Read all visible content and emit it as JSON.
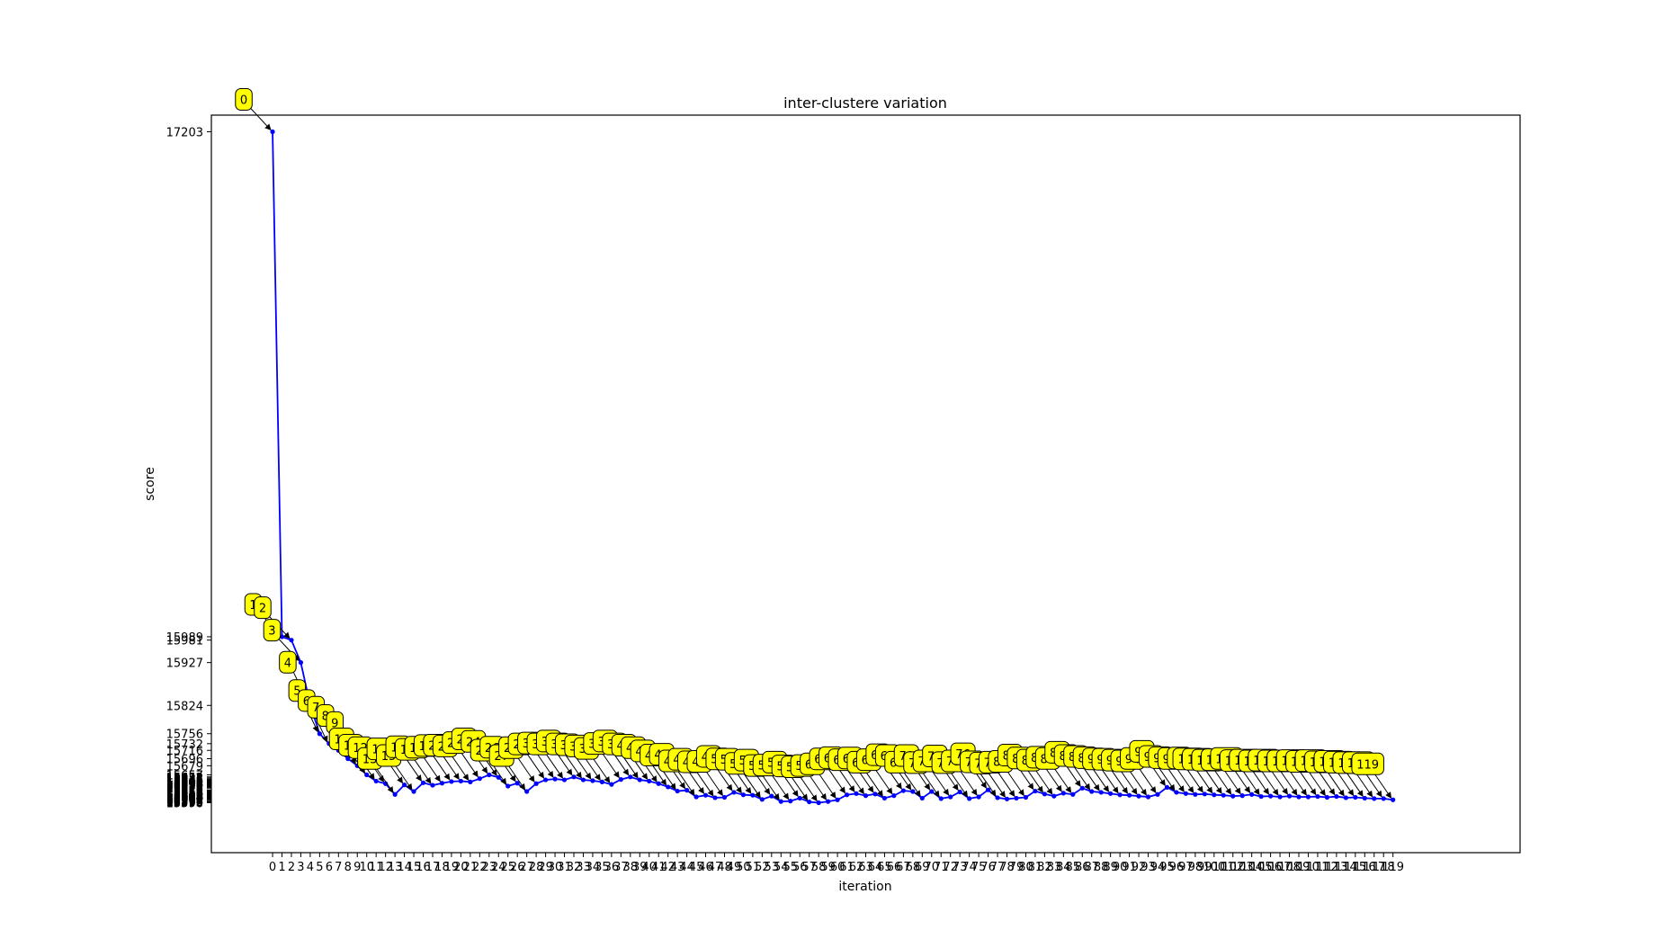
{
  "chart_data": {
    "type": "line",
    "title": "inter-clustere variation",
    "xlabel": "iteration",
    "ylabel": "score",
    "ylim": [
      15470,
      17243
    ],
    "xlim": [
      -6.5,
      132.5
    ],
    "grid": false,
    "legend": "none",
    "colors": {
      "line": "#0000ff",
      "marker": "#0000ff",
      "annotation_fill": "#ffff00",
      "annotation_edge": "#000000"
    },
    "yticks": [
      17203,
      15989,
      15981,
      15927,
      15824,
      15756,
      15696,
      15679,
      15657,
      15642
    ],
    "x": [
      0,
      1,
      2,
      3,
      4,
      5,
      6,
      7,
      8,
      9,
      10,
      11,
      12,
      13,
      14,
      15,
      16,
      17,
      18,
      19,
      20,
      21,
      22,
      23,
      24,
      25,
      26,
      27,
      28,
      29,
      30,
      31,
      32,
      33,
      34,
      35,
      36,
      37,
      38,
      39,
      40,
      41,
      42,
      43,
      44,
      45,
      46,
      47,
      48,
      49,
      50,
      51,
      52,
      53,
      54,
      55,
      56,
      57,
      58,
      59,
      60,
      61,
      62,
      63,
      64,
      65,
      66,
      67,
      68,
      69,
      70,
      71,
      72,
      73,
      74,
      75,
      76,
      77,
      78,
      79,
      80,
      81,
      82,
      83,
      84,
      85,
      86,
      87,
      88,
      89,
      90,
      91,
      92,
      93,
      94,
      95,
      96,
      97,
      98,
      99,
      100,
      101,
      102,
      103,
      104,
      105,
      106,
      107,
      108,
      109,
      110,
      111,
      112,
      113,
      114,
      115,
      116,
      117,
      118,
      119
    ],
    "series": [
      {
        "values": [
          17203,
          15989,
          15981,
          15927,
          15824,
          15756,
          15732,
          15716,
          15696,
          15679,
          15657,
          15642,
          15636,
          15610,
          15633,
          15617,
          15638,
          15632,
          15637,
          15641,
          15642,
          15640,
          15648,
          15657,
          15651,
          15630,
          15637,
          15617,
          15636,
          15645,
          15647,
          15645,
          15652,
          15645,
          15643,
          15640,
          15634,
          15646,
          15652,
          15645,
          15642,
          15636,
          15628,
          15618,
          15620,
          15604,
          15608,
          15602,
          15603,
          15615,
          15609,
          15608,
          15598,
          15606,
          15593,
          15594,
          15601,
          15592,
          15590,
          15593,
          15597,
          15609,
          15612,
          15607,
          15611,
          15601,
          15607,
          15619,
          15617,
          15601,
          15617,
          15600,
          15604,
          15616,
          15600,
          15604,
          15621,
          15602,
          15599,
          15601,
          15603,
          15618,
          15611,
          15606,
          15613,
          15610,
          15625,
          15617,
          15615,
          15612,
          15609,
          15608,
          15606,
          15604,
          15610,
          15627,
          15615,
          15612,
          15610,
          15611,
          15609,
          15608,
          15606,
          15607,
          15610,
          15605,
          15606,
          15604,
          15606,
          15604,
          15604,
          15605,
          15603,
          15605,
          15602,
          15603,
          15601,
          15600,
          15600,
          15597
        ]
      }
    ]
  }
}
